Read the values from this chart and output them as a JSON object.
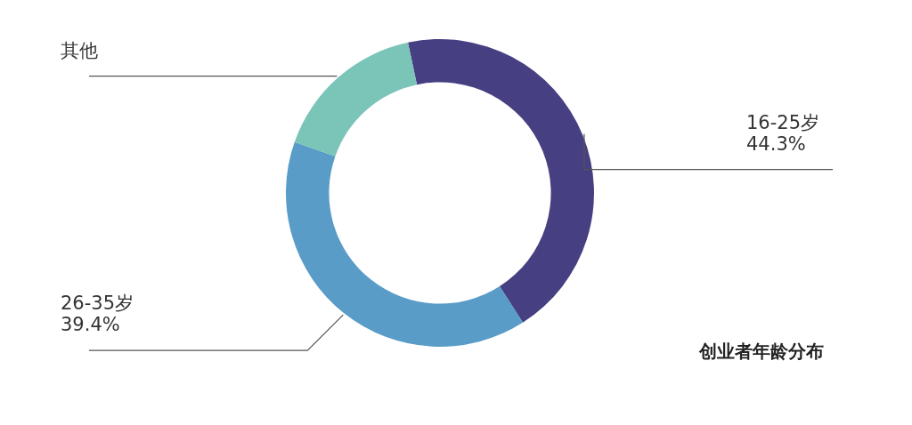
{
  "chart_data": {
    "type": "donut",
    "title": "创业者年龄分布",
    "categories": [
      "16-25岁",
      "26-35岁",
      "其他"
    ],
    "values": [
      44.3,
      39.4,
      16.3
    ],
    "colors": [
      "#463f82",
      "#5a9cc8",
      "#7bc4b8"
    ],
    "value_labels": [
      "44.3%",
      "39.4%",
      null
    ]
  }
}
